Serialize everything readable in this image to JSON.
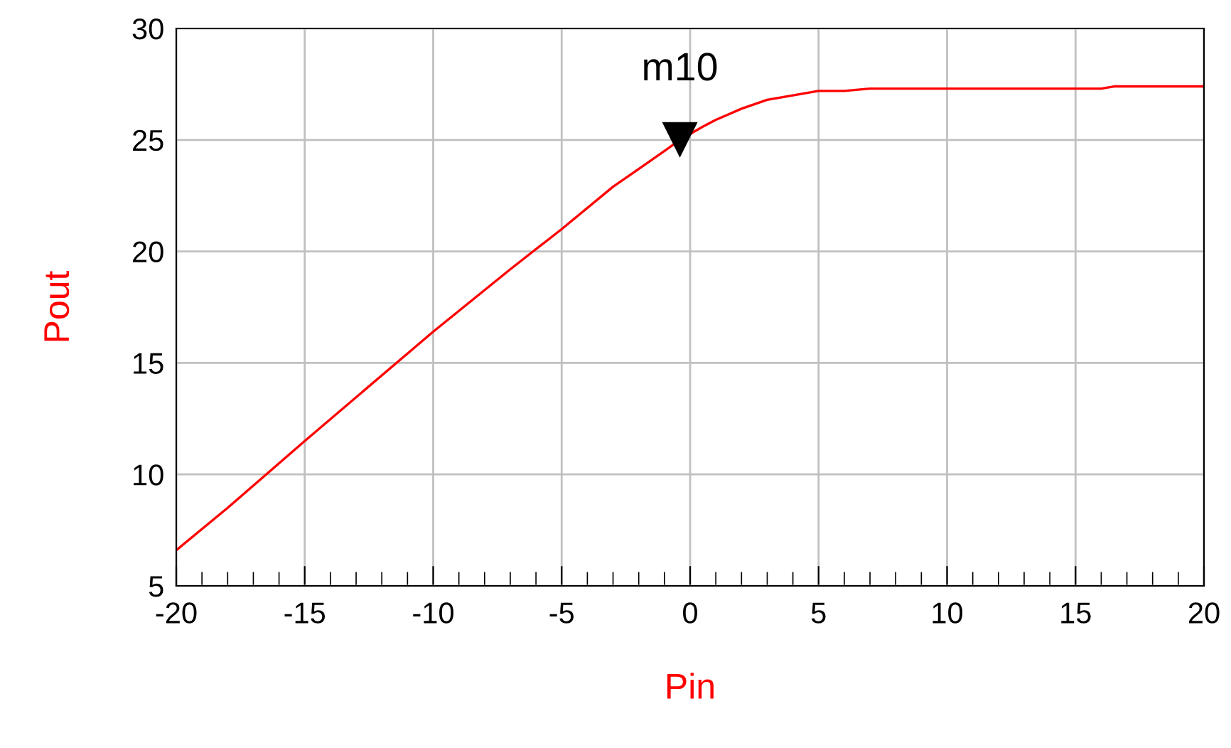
{
  "chart_data": {
    "type": "line",
    "xlabel": "Pin",
    "ylabel": "Pout",
    "series": [
      {
        "color": "#ff0000",
        "x": [
          -20,
          -18,
          -15,
          -10,
          -7,
          -5,
          -3,
          -2,
          -1,
          -0.4,
          0.5,
          1,
          2,
          3,
          4,
          5,
          6,
          7,
          16,
          16.5,
          20
        ],
        "values": [
          6.6,
          8.5,
          11.5,
          16.4,
          19.2,
          21.0,
          22.9,
          23.7,
          24.5,
          25.0,
          25.6,
          25.9,
          26.4,
          26.8,
          27.0,
          27.2,
          27.2,
          27.3,
          27.3,
          27.4,
          27.4
        ]
      }
    ],
    "annotations": [
      {
        "text": "m10",
        "x": -0.4,
        "y": 25.0
      }
    ],
    "xlim": [
      -20,
      20
    ],
    "xticks": [
      -20,
      -15,
      -10,
      -5,
      0,
      5,
      10,
      15,
      20
    ],
    "ylim": [
      5,
      30
    ],
    "yticks": [
      5,
      10,
      15,
      20,
      25,
      30
    ],
    "grid": true,
    "marker": "none",
    "line_style": "solid"
  }
}
